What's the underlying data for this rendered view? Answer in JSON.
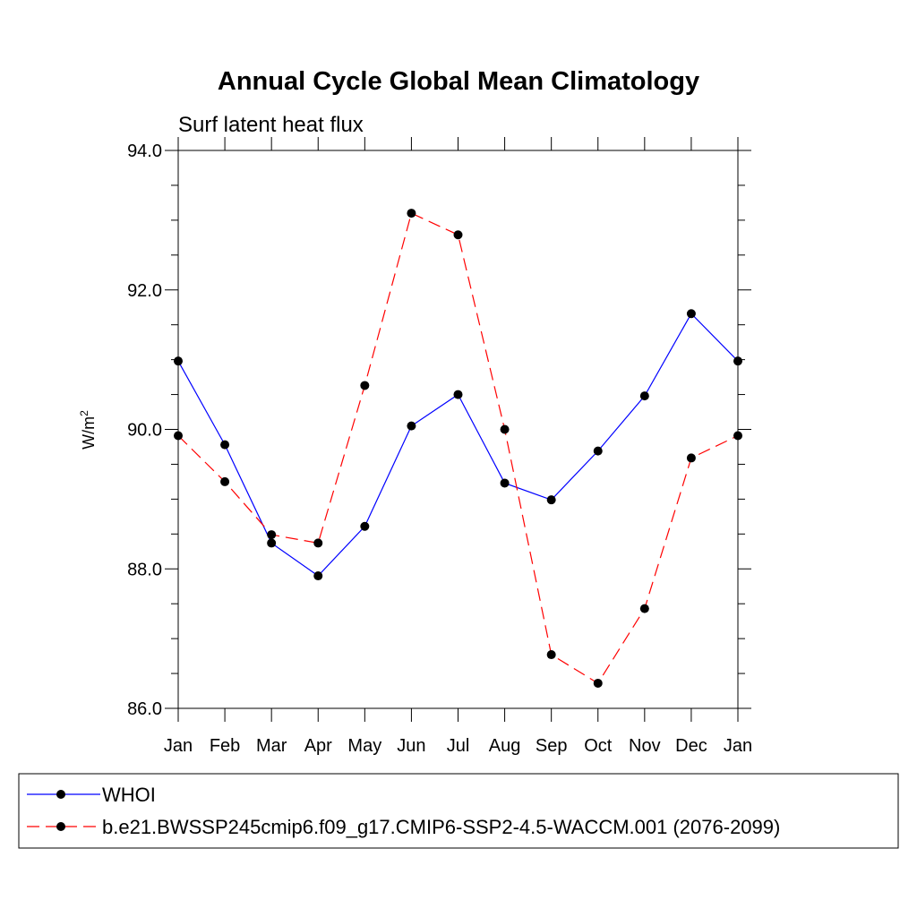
{
  "chart_data": {
    "type": "line",
    "title": "Annual Cycle Global Mean Climatology",
    "subtitle": "Surf latent heat flux",
    "ylabel_base": "W/m",
    "ylabel_sup": "2",
    "xlabel": "",
    "categories": [
      "Jan",
      "Feb",
      "Mar",
      "Apr",
      "May",
      "Jun",
      "Jul",
      "Aug",
      "Sep",
      "Oct",
      "Nov",
      "Dec",
      "Jan"
    ],
    "ylim": [
      86.0,
      94.0
    ],
    "yticks": [
      86.0,
      88.0,
      90.0,
      92.0,
      94.0
    ],
    "ytick_labels": [
      "86.0",
      "88.0",
      "90.0",
      "92.0",
      "94.0"
    ],
    "legend_position": "bottom",
    "series": [
      {
        "name": "WHOI",
        "color": "#0000ff",
        "style": "solid",
        "values": [
          90.98,
          89.78,
          88.37,
          87.9,
          88.61,
          90.05,
          90.5,
          89.23,
          88.99,
          89.69,
          90.48,
          91.66,
          90.98
        ]
      },
      {
        "name": "b.e21.BWSSP245cmip6.f09_g17.CMIP6-SSP2-4.5-WACCM.001 (2076-2099)",
        "color": "#ff0000",
        "style": "dashed",
        "values": [
          89.91,
          89.25,
          88.49,
          88.37,
          90.63,
          93.1,
          92.79,
          90.0,
          86.77,
          86.36,
          87.43,
          89.59,
          89.91
        ]
      }
    ]
  }
}
